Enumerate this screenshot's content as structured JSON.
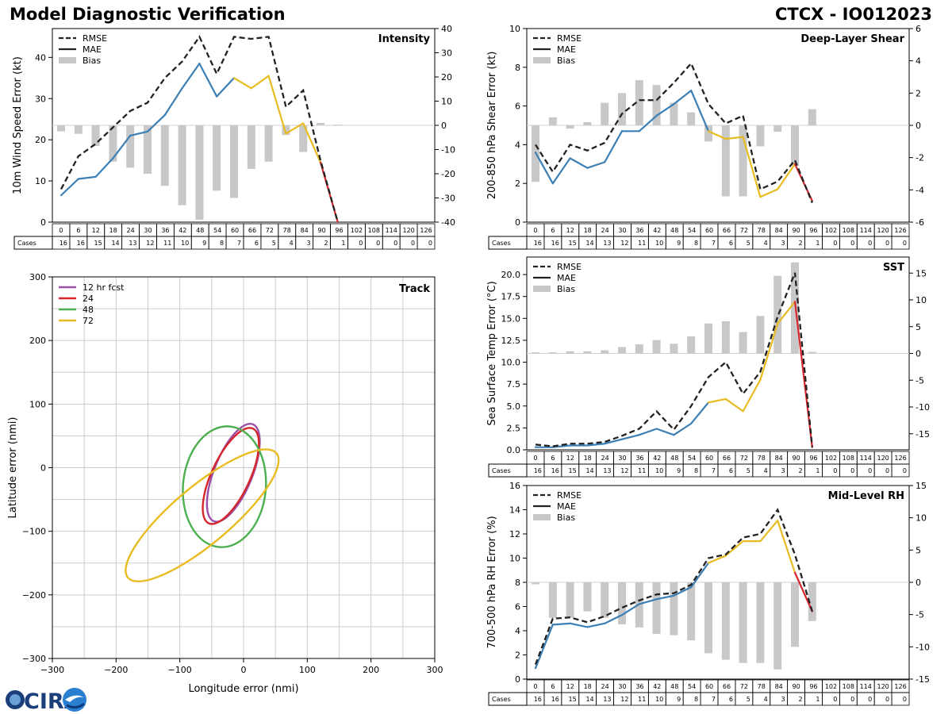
{
  "header": {
    "title": "Model Diagnostic Verification",
    "storm": "CTCX - IO012023"
  },
  "table": {
    "cases_label": "Cases",
    "hours": [
      0,
      6,
      12,
      18,
      24,
      30,
      36,
      42,
      48,
      54,
      60,
      66,
      72,
      78,
      84,
      90,
      96,
      102,
      108,
      114,
      120,
      126
    ],
    "cases": [
      16,
      16,
      15,
      14,
      13,
      12,
      11,
      10,
      9,
      8,
      7,
      6,
      5,
      4,
      3,
      2,
      1,
      0,
      0,
      0,
      0,
      0
    ]
  },
  "colors": {
    "rmse": "#222222",
    "bias": "#c8c8c8",
    "blue": "#3b7fb5",
    "yellow": "#e8bc20",
    "red": "#d7252c",
    "purple": "#9b4fa6",
    "green": "#4caf50",
    "grid": "#cccccc"
  },
  "logo": {
    "text": "CIRA"
  },
  "chart_data": [
    {
      "id": "intensity",
      "type": "line",
      "title": "Intensity",
      "ylabel": "10m Wind Speed Error (kt)",
      "ylim": [
        0,
        47
      ],
      "yticks": [
        0,
        10,
        20,
        30,
        40
      ],
      "y2lim": [
        -40,
        40
      ],
      "y2ticks": [
        -40,
        -30,
        -20,
        -10,
        0,
        10,
        20,
        30,
        40
      ],
      "legend": [
        "RMSE",
        "MAE",
        "Bias"
      ],
      "rmse": [
        8,
        16,
        19,
        23,
        27,
        29,
        35,
        39,
        45,
        36,
        45,
        44.5,
        45,
        28,
        32,
        15,
        0
      ],
      "mae": [
        6.5,
        10.5,
        11,
        15.5,
        21,
        22,
        26,
        32.5,
        38.5,
        30.5,
        35,
        32.5,
        35.5,
        21.5,
        24,
        14.5,
        0
      ],
      "bias": [
        -2.5,
        -3.5,
        -8.5,
        -15,
        -17.5,
        -20,
        -25,
        -33,
        -39,
        -27,
        -30,
        -18,
        -15,
        -4,
        -11,
        1,
        0.3,
        null,
        null,
        null,
        null,
        null
      ]
    },
    {
      "id": "shear",
      "type": "line",
      "title": "Deep-Layer Shear",
      "ylabel": "200-850 hPa Shear Error (kt)",
      "ylim": [
        0,
        10
      ],
      "yticks": [
        0,
        2,
        4,
        6,
        8,
        10
      ],
      "y2lim": [
        -6,
        6
      ],
      "y2ticks": [
        -6,
        -4,
        -2,
        0,
        2,
        4,
        6
      ],
      "legend": [
        "RMSE",
        "MAE",
        "Bias"
      ],
      "rmse": [
        4.0,
        2.6,
        4.0,
        3.7,
        4.1,
        5.6,
        6.3,
        6.3,
        7.2,
        8.2,
        6.1,
        5.1,
        5.5,
        1.7,
        2.1,
        3.2,
        1.0
      ],
      "mae": [
        3.6,
        2.0,
        3.3,
        2.8,
        3.1,
        4.7,
        4.7,
        5.5,
        6.1,
        6.8,
        4.7,
        4.3,
        4.4,
        1.3,
        1.7,
        3.0,
        1.1
      ],
      "bias": [
        -3.5,
        0.5,
        -0.2,
        0.2,
        1.4,
        2.0,
        2.8,
        2.5,
        1.4,
        0.8,
        -1.0,
        -4.4,
        -4.4,
        -1.3,
        -0.4,
        -2.5,
        1.0,
        null,
        null,
        null,
        null,
        null
      ]
    },
    {
      "id": "sst",
      "type": "line",
      "title": "SST",
      "ylabel": "Sea Surface Temp Error (°C)",
      "ylim": [
        0,
        22
      ],
      "yticks": [
        0.0,
        2.5,
        5.0,
        7.5,
        10.0,
        12.5,
        15.0,
        17.5,
        20.0
      ],
      "y2lim": [
        -18,
        18
      ],
      "y2ticks": [
        -15,
        -10,
        -5,
        0,
        5,
        10,
        15
      ],
      "legend": [
        "RMSE",
        "MAE",
        "Bias"
      ],
      "rmse": [
        0.6,
        0.4,
        0.7,
        0.7,
        0.9,
        1.6,
        2.4,
        4.4,
        2.3,
        5.0,
        8.3,
        10.0,
        6.4,
        8.9,
        15.2,
        20.2,
        0.3
      ],
      "mae": [
        0.3,
        0.3,
        0.5,
        0.5,
        0.7,
        1.2,
        1.7,
        2.4,
        1.7,
        3.0,
        5.4,
        5.8,
        4.4,
        8.0,
        14.4,
        16.9,
        0.3
      ],
      "bias": [
        0.2,
        0.2,
        0.4,
        0.4,
        0.6,
        1.2,
        1.7,
        2.5,
        1.8,
        3.2,
        5.6,
        6.0,
        4.0,
        7.0,
        14.5,
        17.0,
        0.3,
        null,
        null,
        null,
        null,
        null
      ]
    },
    {
      "id": "rh",
      "type": "line",
      "title": "Mid-Level RH",
      "ylabel": "700-500 hPa RH Error (%)",
      "ylim": [
        0,
        16
      ],
      "yticks": [
        0,
        2,
        4,
        6,
        8,
        10,
        12,
        14,
        16
      ],
      "y2lim": [
        -15,
        15
      ],
      "y2ticks": [
        -15,
        -10,
        -5,
        0,
        5,
        10,
        15
      ],
      "legend": [
        "RMSE",
        "MAE",
        "Bias"
      ],
      "rmse": [
        1.2,
        5.0,
        5.1,
        4.7,
        5.2,
        5.9,
        6.5,
        7.0,
        7.1,
        7.8,
        10.0,
        10.3,
        11.7,
        12.0,
        14.0,
        10.3,
        5.6
      ],
      "mae": [
        0.9,
        4.5,
        4.6,
        4.3,
        4.6,
        5.3,
        6.2,
        6.6,
        6.9,
        7.6,
        9.6,
        10.2,
        11.4,
        11.4,
        13.1,
        8.8,
        5.6
      ],
      "bias": [
        -0.3,
        -5.5,
        -5.5,
        -4.5,
        -5.5,
        -6.5,
        -7.0,
        -8.0,
        -8.2,
        -9.0,
        -11.0,
        -12.0,
        -12.5,
        -12.5,
        -13.5,
        -10.0,
        -6.0,
        null,
        null,
        null,
        null,
        null
      ]
    },
    {
      "id": "track",
      "type": "scatter",
      "title": "Track",
      "xlabel": "Longitude error (nmi)",
      "ylabel": "Latitude error (nmi)",
      "xlim": [
        -300,
        300
      ],
      "ylim": [
        -300,
        300
      ],
      "xticks": [
        -300,
        -200,
        -100,
        0,
        100,
        200,
        300
      ],
      "yticks": [
        -300,
        -200,
        -100,
        0,
        100,
        200,
        300
      ],
      "series": [
        {
          "name": "12 hr fcst",
          "color": "#9b4fa6",
          "cx": -16,
          "cy": -8,
          "rx": 82,
          "ry": 30,
          "angle": 68
        },
        {
          "name": "24",
          "color": "#d7252c",
          "cx": -20,
          "cy": -13,
          "rx": 82,
          "ry": 30,
          "angle": 65
        },
        {
          "name": "48",
          "color": "#4caf50",
          "cx": -30,
          "cy": -30,
          "rx": 95,
          "ry": 65,
          "angle": 85
        },
        {
          "name": "72",
          "color": "#e8bc20",
          "cx": -65,
          "cy": -75,
          "rx": 152,
          "ry": 45,
          "angle": 40
        }
      ]
    }
  ]
}
